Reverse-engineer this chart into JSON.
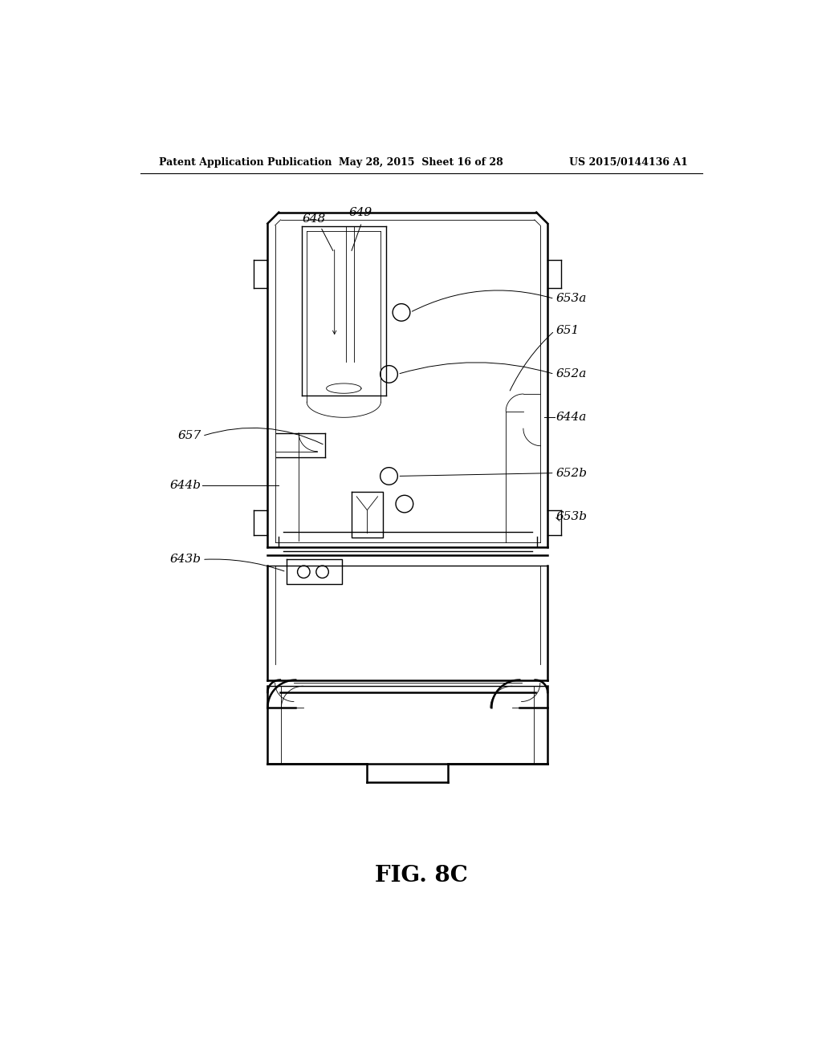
{
  "bg_color": "#ffffff",
  "header_left": "Patent Application Publication",
  "header_mid": "May 28, 2015  Sheet 16 of 28",
  "header_right": "US 2015/0144136 A1",
  "fig_label": "FIG. 8C",
  "lw_outer": 1.8,
  "lw_inner": 1.0,
  "lw_thin": 0.6
}
